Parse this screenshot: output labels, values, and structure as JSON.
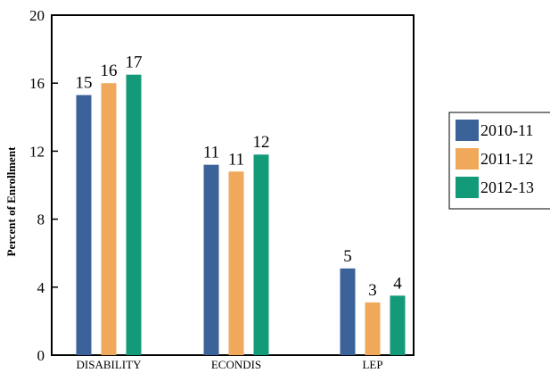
{
  "chart_data": {
    "type": "bar",
    "title": "",
    "xlabel": "",
    "ylabel": "Percent of Enrollment",
    "ylim": [
      0,
      20
    ],
    "yticks": [
      0,
      4,
      8,
      12,
      16,
      20
    ],
    "grid": false,
    "legend_position": "right",
    "categories": [
      "DISABILITY",
      "ECONDIS",
      "LEP"
    ],
    "series": [
      {
        "name": "2010-11",
        "color": "#3b6399",
        "values": [
          15.3,
          11.2,
          5.1
        ],
        "labels": [
          "15",
          "11",
          "5"
        ]
      },
      {
        "name": "2011-12",
        "color": "#f0a95a",
        "values": [
          16.0,
          10.8,
          3.1
        ],
        "labels": [
          "16",
          "11",
          "3"
        ]
      },
      {
        "name": "2012-13",
        "color": "#139a78",
        "values": [
          16.5,
          11.8,
          3.5
        ],
        "labels": [
          "17",
          "12",
          "4"
        ]
      }
    ]
  }
}
